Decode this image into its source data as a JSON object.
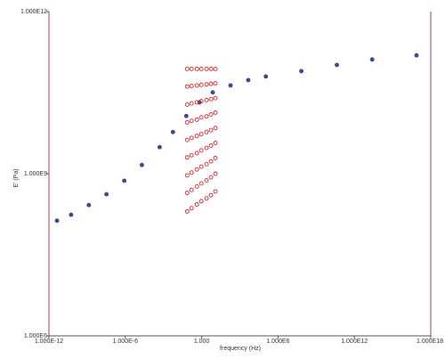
{
  "chart_data": {
    "type": "scatter",
    "x_label": "frequency (Hz)",
    "y_label": "E' (Pa)",
    "xscale": "log",
    "yscale": "log",
    "xlim": [
      1e-12,
      1e+18
    ],
    "ylim": [
      1000000.0,
      1000000000000.0
    ],
    "xticks": [
      {
        "value": 1e-12,
        "label": "1.000E-12"
      },
      {
        "value": 1e-06,
        "label": "1.000E-6"
      },
      {
        "value": 1,
        "label": "1.000"
      },
      {
        "value": 1000000.0,
        "label": "1.000E6"
      },
      {
        "value": 1000000000000.0,
        "label": "1.000E12"
      },
      {
        "value": 1e+18,
        "label": "1.000E18"
      }
    ],
    "yticks": [
      {
        "value": 1000000.0,
        "label": "1.000E6"
      },
      {
        "value": 1000000000.0,
        "label": "1.000E9"
      },
      {
        "value": 1000000000000.0,
        "label": "1.000E12"
      }
    ],
    "axis_color": "#c0305a",
    "series": [
      {
        "color": "#3a4a9a",
        "filled": true,
        "x": [
          4.3e-12,
          5.5e-11,
          1.35e-09,
          3.3e-08,
          8.3e-07,
          2e-05,
          0.0005,
          0.0055,
          0.062,
          0.68,
          7.4,
          186,
          4600,
          110000.0,
          68000000.0,
          42000000000.0,
          25000000000000.0,
          7.6e+16
        ],
        "y": [
          135000000.0,
          174000000.0,
          263000000.0,
          417000000.0,
          740000000.0,
          1450000000.0,
          3100000000.0,
          5900000000.0,
          11700000000.0,
          20900000000.0,
          32000000000.0,
          43000000000.0,
          54000000000.0,
          63000000000.0,
          79000000000.0,
          103000000000.0,
          130000000000.0,
          155000000000.0
        ]
      },
      {
        "color": "#e0202a",
        "filled": false,
        "x": [
          0.072,
          0.072,
          0.072,
          0.072,
          0.072,
          0.072,
          0.072,
          0.072,
          0.072
        ],
        "y": [
          87000000000.0,
          41000000000.0,
          19000000000.0,
          8900000000.0,
          4200000000.0,
          2000000000.0,
          930000000.0,
          440000000.0,
          200000000.0
        ]
      },
      {
        "color": "#e0202a",
        "filled": false,
        "x": [
          0.16,
          0.16,
          0.16,
          0.16,
          0.16,
          0.16,
          0.16,
          0.16,
          0.16
        ],
        "y": [
          87000000000.0,
          42000000000.0,
          20000000000.0,
          9500000000.0,
          4600000000.0,
          2200000000.0,
          1050000000.0,
          500000000.0,
          230000000.0
        ]
      },
      {
        "color": "#e0202a",
        "filled": false,
        "x": [
          0.42,
          0.42,
          0.42,
          0.42,
          0.42,
          0.42,
          0.42,
          0.42,
          0.42
        ],
        "y": [
          87000000000.0,
          43000000000.0,
          21000000000.0,
          10000000000.0,
          5000000000.0,
          2400000000.0,
          1200000000.0,
          580000000.0,
          270000000.0
        ]
      },
      {
        "color": "#e0202a",
        "filled": false,
        "x": [
          0.93,
          0.93,
          0.93,
          0.93,
          0.93,
          0.93,
          0.93,
          0.93,
          0.93
        ],
        "y": [
          87000000000.0,
          44000000000.0,
          22000000000.0,
          11000000000.0,
          5400000000.0,
          2700000000.0,
          1350000000.0,
          660000000.0,
          310000000.0
        ]
      },
      {
        "color": "#e0202a",
        "filled": false,
        "x": [
          2.4,
          2.4,
          2.4,
          2.4,
          2.4,
          2.4,
          2.4,
          2.4,
          2.4
        ],
        "y": [
          87000000000.0,
          45000000000.0,
          23000000000.0,
          11500000000.0,
          5900000000.0,
          3000000000.0,
          1500000000.0,
          750000000.0,
          350000000.0
        ]
      },
      {
        "color": "#e0202a",
        "filled": false,
        "x": [
          5.4,
          5.4,
          5.4,
          5.4,
          5.4,
          5.4,
          5.4,
          5.4,
          5.4
        ],
        "y": [
          87000000000.0,
          46000000000.0,
          24000000000.0,
          12500000000.0,
          6400000000.0,
          3300000000.0,
          1700000000.0,
          860000000.0,
          400000000.0
        ]
      },
      {
        "color": "#e0202a",
        "filled": false,
        "x": [
          12,
          12,
          12,
          12,
          12,
          12,
          12,
          12,
          12
        ],
        "y": [
          87000000000.0,
          47000000000.0,
          25000000000.0,
          13500000000.0,
          7000000000.0,
          3700000000.0,
          1950000000.0,
          1000000000.0,
          470000000.0
        ]
      }
    ]
  }
}
